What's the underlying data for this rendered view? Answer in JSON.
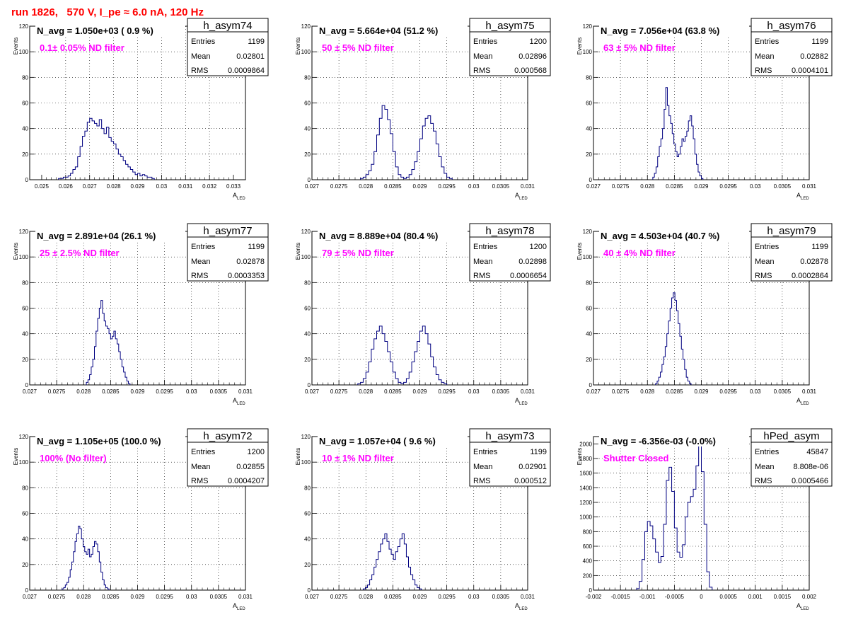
{
  "page": {
    "title": "run 1826,   570 V, I_pe ≈ 6.0 nA, 120 Hz"
  },
  "stat_labels": {
    "entries": "Entries",
    "mean": "Mean",
    "rms": "RMS"
  },
  "axis_labels": {
    "y": "Events",
    "x": "A",
    "x_sub": "LED"
  },
  "colors": {
    "hist": "#000080",
    "annotation": "#ff00ff",
    "title": "#ff0000"
  },
  "chart_data": [
    {
      "type": "histogram",
      "name": "h_asym74",
      "navg": "N_avg = 1.050e+03 ( 0.9 %)",
      "label": "0.1± 0.05% ND filter",
      "entries": "1199",
      "mean": "0.02801",
      "rms": "0.0009864",
      "xlim": [
        0.0245,
        0.0335
      ],
      "ylim": [
        0,
        120
      ],
      "xticks": [
        0.025,
        0.026,
        0.027,
        0.028,
        0.029,
        0.03,
        0.031,
        0.032,
        0.033
      ],
      "xtick_labels": [
        "0.025",
        "0.026",
        "0.027",
        "0.028",
        "0.029",
        "0.03",
        "0.031",
        "0.032",
        "0.033"
      ],
      "yticks": [
        0,
        20,
        40,
        60,
        80,
        100,
        120
      ],
      "ytick_labels": [
        "0",
        "20",
        "40",
        "60",
        "80",
        "100",
        "120"
      ],
      "bins": {
        "start": 0.0257,
        "width": 0.0001,
        "values": [
          1,
          1,
          2,
          2,
          3,
          5,
          8,
          10,
          18,
          26,
          34,
          38,
          45,
          48,
          46,
          44,
          42,
          47,
          40,
          36,
          41,
          33,
          30,
          28,
          24,
          20,
          18,
          15,
          12,
          10,
          8,
          6,
          4,
          5,
          3,
          4,
          3,
          2,
          2,
          1
        ]
      }
    },
    {
      "type": "histogram",
      "name": "h_asym75",
      "navg": "N_avg = 5.664e+04 (51.2 %)",
      "label": "50 ± 5% ND filter",
      "entries": "1200",
      "mean": "0.02896",
      "rms": "0.000568",
      "xlim": [
        0.027,
        0.031
      ],
      "ylim": [
        0,
        120
      ],
      "xticks": [
        0.027,
        0.0275,
        0.028,
        0.0285,
        0.029,
        0.0295,
        0.03,
        0.0305,
        0.031
      ],
      "xtick_labels": [
        "0.027",
        "0.0275",
        "0.028",
        "0.0285",
        "0.029",
        "0.0295",
        "0.03",
        "0.0305",
        "0.031"
      ],
      "yticks": [
        0,
        20,
        40,
        60,
        80,
        100,
        120
      ],
      "ytick_labels": [
        "0",
        "20",
        "40",
        "60",
        "80",
        "100",
        "120"
      ],
      "bins": {
        "start": 0.0279,
        "width": 5e-05,
        "values": [
          1,
          2,
          4,
          7,
          12,
          22,
          35,
          48,
          58,
          55,
          47,
          36,
          22,
          10,
          4,
          2,
          1,
          2,
          4,
          8,
          14,
          22,
          32,
          42,
          48,
          50,
          44,
          38,
          28,
          18,
          10,
          5,
          2,
          1
        ]
      }
    },
    {
      "type": "histogram",
      "name": "h_asym76",
      "navg": "N_avg = 7.056e+04 (63.8 %)",
      "label": "63 ± 5% ND filter",
      "entries": "1199",
      "mean": "0.02882",
      "rms": "0.0004101",
      "xlim": [
        0.027,
        0.031
      ],
      "ylim": [
        0,
        120
      ],
      "xticks": [
        0.027,
        0.0275,
        0.028,
        0.0285,
        0.029,
        0.0295,
        0.03,
        0.0305,
        0.031
      ],
      "xtick_labels": [
        "0.027",
        "0.0275",
        "0.028",
        "0.0285",
        "0.029",
        "0.0295",
        "0.03",
        "0.0305",
        "0.031"
      ],
      "yticks": [
        0,
        20,
        40,
        60,
        80,
        100,
        120
      ],
      "ytick_labels": [
        "0",
        "20",
        "40",
        "60",
        "80",
        "100",
        "120"
      ],
      "bins": {
        "start": 0.0281,
        "width": 3e-05,
        "values": [
          2,
          5,
          10,
          18,
          26,
          32,
          40,
          55,
          72,
          58,
          50,
          44,
          36,
          28,
          22,
          18,
          20,
          26,
          32,
          30,
          34,
          38,
          46,
          50,
          42,
          32,
          20,
          12,
          6,
          3,
          1
        ]
      }
    },
    {
      "type": "histogram",
      "name": "h_asym77",
      "navg": "N_avg = 2.891e+04 (26.1 %)",
      "label": "25 ± 2.5% ND filter",
      "entries": "1199",
      "mean": "0.02878",
      "rms": "0.0003353",
      "xlim": [
        0.027,
        0.031
      ],
      "ylim": [
        0,
        120
      ],
      "xticks": [
        0.027,
        0.0275,
        0.028,
        0.0285,
        0.029,
        0.0295,
        0.03,
        0.0305,
        0.031
      ],
      "xtick_labels": [
        "0.027",
        "0.0275",
        "0.028",
        "0.0285",
        "0.029",
        "0.0295",
        "0.03",
        "0.0305",
        "0.031"
      ],
      "yticks": [
        0,
        20,
        40,
        60,
        80,
        100,
        120
      ],
      "ytick_labels": [
        "0",
        "20",
        "40",
        "60",
        "80",
        "100",
        "120"
      ],
      "bins": {
        "start": 0.02805,
        "width": 3e-05,
        "values": [
          2,
          4,
          8,
          14,
          20,
          30,
          42,
          52,
          60,
          66,
          56,
          50,
          46,
          44,
          40,
          36,
          38,
          42,
          36,
          32,
          26,
          20,
          14,
          10,
          6,
          3,
          1
        ]
      }
    },
    {
      "type": "histogram",
      "name": "h_asym78",
      "navg": "N_avg = 8.889e+04 (80.4 %)",
      "label": "79 ± 5% ND filter",
      "entries": "1200",
      "mean": "0.02898",
      "rms": "0.0006654",
      "xlim": [
        0.027,
        0.031
      ],
      "ylim": [
        0,
        120
      ],
      "xticks": [
        0.027,
        0.0275,
        0.028,
        0.0285,
        0.029,
        0.0295,
        0.03,
        0.0305,
        0.031
      ],
      "xtick_labels": [
        "0.027",
        "0.0275",
        "0.028",
        "0.0285",
        "0.029",
        "0.0295",
        "0.03",
        "0.0305",
        "0.031"
      ],
      "yticks": [
        0,
        20,
        40,
        60,
        80,
        100,
        120
      ],
      "ytick_labels": [
        "0",
        "20",
        "40",
        "60",
        "80",
        "100",
        "120"
      ],
      "bins": {
        "start": 0.02785,
        "width": 5e-05,
        "values": [
          1,
          2,
          5,
          10,
          18,
          28,
          36,
          42,
          46,
          40,
          34,
          26,
          18,
          10,
          5,
          2,
          1,
          2,
          5,
          10,
          18,
          26,
          34,
          42,
          46,
          40,
          32,
          22,
          14,
          8,
          4,
          2,
          1
        ]
      }
    },
    {
      "type": "histogram",
      "name": "h_asym79",
      "navg": "N_avg = 4.503e+04 (40.7 %)",
      "label": "40 ± 4% ND filter",
      "entries": "1199",
      "mean": "0.02878",
      "rms": "0.0002864",
      "xlim": [
        0.027,
        0.031
      ],
      "ylim": [
        0,
        120
      ],
      "xticks": [
        0.027,
        0.0275,
        0.028,
        0.0285,
        0.029,
        0.0295,
        0.03,
        0.0305,
        0.031
      ],
      "xtick_labels": [
        "0.027",
        "0.0275",
        "0.028",
        "0.0285",
        "0.029",
        "0.0295",
        "0.03",
        "0.0305",
        "0.031"
      ],
      "yticks": [
        0,
        20,
        40,
        60,
        80,
        100,
        120
      ],
      "ytick_labels": [
        "0",
        "20",
        "40",
        "60",
        "80",
        "100",
        "120"
      ],
      "bins": {
        "start": 0.02815,
        "width": 3e-05,
        "values": [
          1,
          3,
          6,
          10,
          16,
          22,
          30,
          40,
          50,
          60,
          68,
          72,
          66,
          58,
          48,
          38,
          28,
          20,
          12,
          6,
          3,
          1
        ]
      }
    },
    {
      "type": "histogram",
      "name": "h_asym72",
      "navg": "N_avg = 1.105e+05 (100.0 %)",
      "label": "100% (No filter)",
      "entries": "1200",
      "mean": "0.02855",
      "rms": "0.0004207",
      "xlim": [
        0.027,
        0.031
      ],
      "ylim": [
        0,
        120
      ],
      "xticks": [
        0.027,
        0.0275,
        0.028,
        0.0285,
        0.029,
        0.0295,
        0.03,
        0.0305,
        0.031
      ],
      "xtick_labels": [
        "0.027",
        "0.0275",
        "0.028",
        "0.0285",
        "0.029",
        "0.0295",
        "0.03",
        "0.0305",
        "0.031"
      ],
      "yticks": [
        0,
        20,
        40,
        60,
        80,
        100,
        120
      ],
      "ytick_labels": [
        "0",
        "20",
        "40",
        "60",
        "80",
        "100",
        "120"
      ],
      "bins": {
        "start": 0.0276,
        "width": 3e-05,
        "values": [
          1,
          2,
          4,
          6,
          10,
          16,
          22,
          30,
          38,
          44,
          50,
          48,
          40,
          34,
          30,
          28,
          32,
          26,
          28,
          34,
          38,
          36,
          30,
          22,
          14,
          8,
          4,
          2,
          1
        ]
      }
    },
    {
      "type": "histogram",
      "name": "h_asym73",
      "navg": "N_avg = 1.057e+04 ( 9.6 %)",
      "label": "10 ± 1% ND filter",
      "entries": "1199",
      "mean": "0.02901",
      "rms": "0.000512",
      "xlim": [
        0.027,
        0.031
      ],
      "ylim": [
        0,
        120
      ],
      "xticks": [
        0.027,
        0.0275,
        0.028,
        0.0285,
        0.029,
        0.0295,
        0.03,
        0.0305,
        0.031
      ],
      "xtick_labels": [
        "0.027",
        "0.0275",
        "0.028",
        "0.0285",
        "0.029",
        "0.0295",
        "0.03",
        "0.0305",
        "0.031"
      ],
      "yticks": [
        0,
        20,
        40,
        60,
        80,
        100,
        120
      ],
      "ytick_labels": [
        "0",
        "20",
        "40",
        "60",
        "80",
        "100",
        "120"
      ],
      "bins": {
        "start": 0.02795,
        "width": 4e-05,
        "values": [
          1,
          2,
          4,
          8,
          12,
          18,
          24,
          30,
          36,
          40,
          44,
          38,
          32,
          28,
          24,
          30,
          34,
          40,
          44,
          36,
          26,
          18,
          12,
          8,
          4,
          2,
          1
        ]
      }
    },
    {
      "type": "histogram",
      "name": "hPed_asym",
      "navg": "N_avg = -6.356e-03 (-0.0%)",
      "label": "Shutter Closed",
      "entries": "45847",
      "mean": "8.808e-06",
      "rms": "0.0005466",
      "xlim": [
        -0.002,
        0.002
      ],
      "ylim": [
        0,
        2100
      ],
      "xticks": [
        -0.002,
        -0.0015,
        -0.001,
        -0.0005,
        0,
        0.0005,
        0.001,
        0.0015,
        0.002
      ],
      "xtick_labels": [
        "-0.002",
        "-0.0015",
        "-0.001",
        "-0.0005",
        "0",
        "0.0005",
        "0.001",
        "0.0015",
        "0.002"
      ],
      "yticks": [
        0,
        200,
        400,
        600,
        800,
        1000,
        1200,
        1400,
        1600,
        1800,
        2000
      ],
      "ytick_labels": [
        "0",
        "200",
        "400",
        "600",
        "800",
        "1000",
        "1200",
        "1400",
        "1600",
        "1800",
        "2000"
      ],
      "bins": {
        "start": -0.0012,
        "width": 5e-05,
        "values": [
          20,
          120,
          420,
          800,
          940,
          880,
          700,
          520,
          380,
          460,
          900,
          1500,
          1680,
          1350,
          850,
          520,
          450,
          620,
          1000,
          1200,
          1280,
          1380,
          1700,
          2050,
          1620,
          900,
          250,
          40
        ]
      }
    }
  ]
}
